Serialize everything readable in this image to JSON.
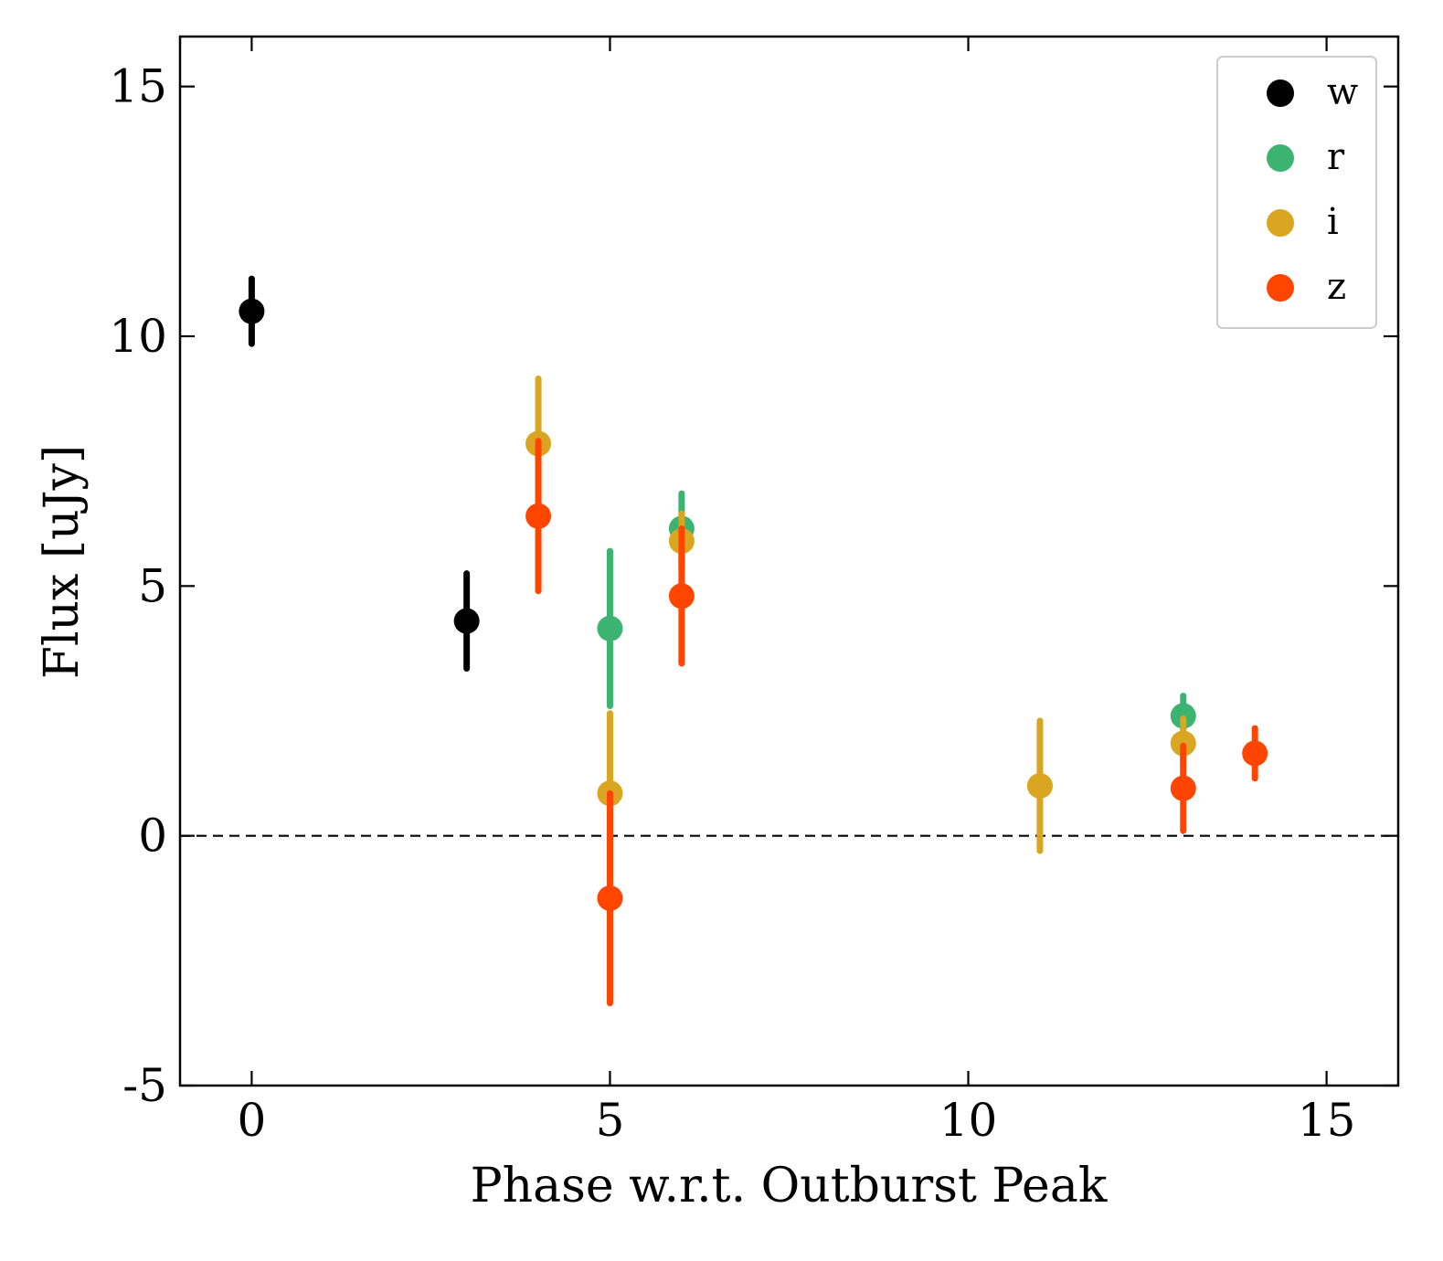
{
  "chart_data": {
    "type": "scatter",
    "title": "",
    "xlabel": "Phase w.r.t. Outburst Peak",
    "ylabel": "Flux [uJy]",
    "xlim": [
      -1,
      16
    ],
    "ylim": [
      -5,
      16
    ],
    "xticks": [
      0,
      5,
      10,
      15
    ],
    "xtick_labels": [
      "0",
      "5",
      "10",
      "15"
    ],
    "yticks": [
      -5,
      0,
      5,
      10,
      15
    ],
    "ytick_labels": [
      "-5",
      "0",
      "5",
      "10",
      "15"
    ],
    "reference_line": {
      "y": 0,
      "style": "dashed"
    },
    "legend": {
      "position": "top-right"
    },
    "series": [
      {
        "name": "w",
        "color": "#000000",
        "points": [
          {
            "x": 0,
            "y": 10.5,
            "yerr": 0.65
          },
          {
            "x": 3,
            "y": 4.3,
            "yerr": 0.95
          }
        ]
      },
      {
        "name": "r",
        "color": "#3cb371",
        "points": [
          {
            "x": 5,
            "y": 4.15,
            "yerr": 1.55
          },
          {
            "x": 6,
            "y": 6.15,
            "yerr": 0.7
          },
          {
            "x": 13,
            "y": 2.4,
            "yerr": 0.4
          }
        ]
      },
      {
        "name": "i",
        "color": "#daa520",
        "points": [
          {
            "x": 4,
            "y": 7.85,
            "yerr": 1.3
          },
          {
            "x": 5,
            "y": 0.85,
            "yerr": 1.6
          },
          {
            "x": 6,
            "y": 5.9,
            "yerr": 0.55
          },
          {
            "x": 11,
            "y": 1.0,
            "yerr": 1.3
          },
          {
            "x": 13,
            "y": 1.85,
            "yerr": 0.5
          }
        ]
      },
      {
        "name": "z",
        "color": "#ff4500",
        "points": [
          {
            "x": 4,
            "y": 6.4,
            "yerr": 1.5
          },
          {
            "x": 5,
            "y": -1.25,
            "yerr": 2.1
          },
          {
            "x": 6,
            "y": 4.8,
            "yerr": 1.35
          },
          {
            "x": 13,
            "y": 0.95,
            "yerr": 0.85
          },
          {
            "x": 14,
            "y": 1.65,
            "yerr": 0.5
          }
        ]
      }
    ]
  }
}
